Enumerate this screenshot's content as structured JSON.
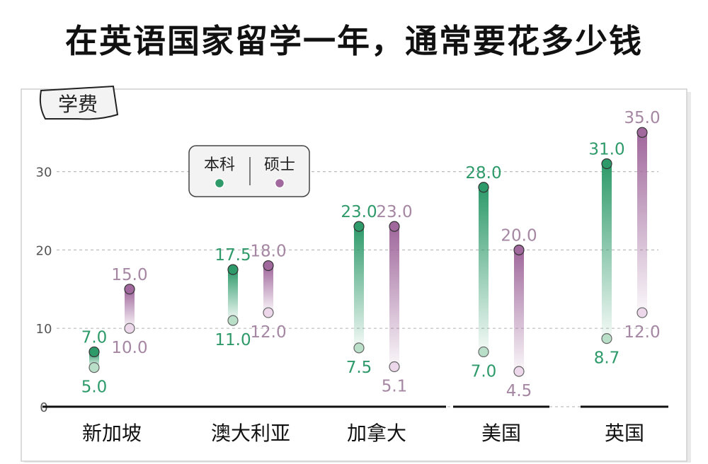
{
  "title": "在英语国家留学一年，通常要花多少钱",
  "chart_data": {
    "type": "range",
    "tab_label": "学费",
    "categories": [
      "新加坡",
      "澳大利亚",
      "加拿大",
      "美国",
      "英国"
    ],
    "y_ticks": [
      0,
      10,
      20,
      30
    ],
    "ylim": [
      0,
      36
    ],
    "grid": true,
    "legend_position": "top-left",
    "series": [
      {
        "name": "本科",
        "color": "#2e9a6a",
        "low": [
          5.0,
          11.0,
          7.5,
          7.0,
          8.7
        ],
        "high": [
          7.0,
          17.5,
          23.0,
          28.0,
          31.0
        ]
      },
      {
        "name": "硕士",
        "color": "#a0689c",
        "low": [
          10.0,
          12.0,
          5.1,
          4.5,
          12.0
        ],
        "high": [
          15.0,
          18.0,
          23.0,
          20.0,
          35.0
        ]
      }
    ],
    "low_labels": [
      [
        "5.0",
        "11.0",
        "7.5",
        "7.0",
        "8.7"
      ],
      [
        "10.0",
        "12.0",
        "5.1",
        "4.5",
        "12.0"
      ]
    ],
    "high_labels": [
      [
        "7.0",
        "17.5",
        "23.0",
        "28.0",
        "31.0"
      ],
      [
        "15.0",
        "18.0",
        "23.0",
        "20.0",
        "35.0"
      ]
    ]
  }
}
